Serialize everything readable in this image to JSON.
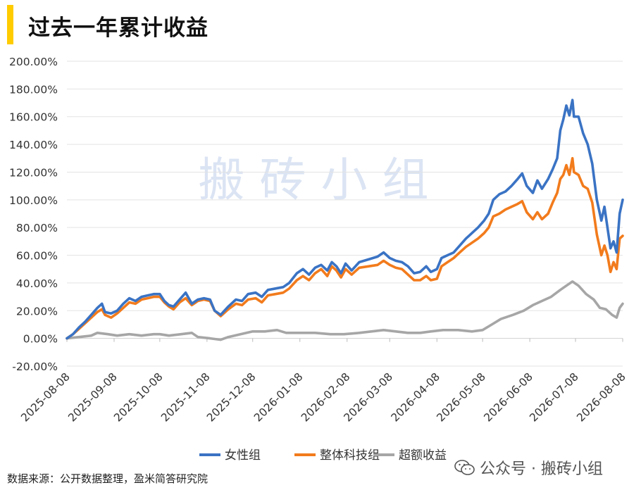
{
  "title": "过去一年累计收益",
  "source": "数据来源：公开数据整理，盈米简答研究院",
  "watermark": "搬 砖 小 组",
  "corner_watermark": "公众号 · 搬砖小组",
  "chart_data": {
    "type": "line",
    "title": "过去一年累计收益",
    "xlabel": "",
    "ylabel": "",
    "ylim": [
      -20,
      200
    ],
    "ytick_step": 20,
    "y_format": "percent_2dp",
    "grid": true,
    "legend_position": "bottom-right",
    "x_ticks": [
      "2025-08-08",
      "2025-09-08",
      "2025-10-08",
      "2025-11-08",
      "2025-12-08",
      "2026-01-08",
      "2026-02-08",
      "2026-03-08",
      "2026-04-08",
      "2026-05-08",
      "2026-06-08",
      "2026-07-08",
      "2026-08-08"
    ],
    "x_range": [
      "2025-08-08",
      "2026-08-08"
    ],
    "series": [
      {
        "name": "女性组",
        "color": "#3a73c4",
        "points": [
          [
            "2025-08-08",
            0
          ],
          [
            "2025-08-12",
            3
          ],
          [
            "2025-08-16",
            8
          ],
          [
            "2025-08-20",
            12
          ],
          [
            "2025-08-24",
            17
          ],
          [
            "2025-08-28",
            22
          ],
          [
            "2025-08-31",
            25
          ],
          [
            "2025-09-02",
            19
          ],
          [
            "2025-09-06",
            18
          ],
          [
            "2025-09-10",
            20
          ],
          [
            "2025-09-14",
            25
          ],
          [
            "2025-09-18",
            29
          ],
          [
            "2025-09-22",
            27
          ],
          [
            "2025-09-26",
            30
          ],
          [
            "2025-09-30",
            31
          ],
          [
            "2025-10-04",
            32
          ],
          [
            "2025-10-08",
            32
          ],
          [
            "2025-10-11",
            27
          ],
          [
            "2025-10-14",
            24
          ],
          [
            "2025-10-17",
            23
          ],
          [
            "2025-10-21",
            28
          ],
          [
            "2025-10-25",
            33
          ],
          [
            "2025-10-29",
            25
          ],
          [
            "2025-11-02",
            28
          ],
          [
            "2025-11-06",
            29
          ],
          [
            "2025-11-10",
            28
          ],
          [
            "2025-11-13",
            20
          ],
          [
            "2025-11-17",
            17
          ],
          [
            "2025-11-22",
            23
          ],
          [
            "2025-11-27",
            28
          ],
          [
            "2025-12-01",
            27
          ],
          [
            "2025-12-05",
            32
          ],
          [
            "2025-12-10",
            33
          ],
          [
            "2025-12-14",
            30
          ],
          [
            "2025-12-18",
            35
          ],
          [
            "2025-12-23",
            36
          ],
          [
            "2025-12-28",
            37
          ],
          [
            "2026-01-01",
            40
          ],
          [
            "2026-01-06",
            47
          ],
          [
            "2026-01-10",
            50
          ],
          [
            "2026-01-14",
            46
          ],
          [
            "2026-01-18",
            51
          ],
          [
            "2026-01-22",
            53
          ],
          [
            "2026-01-26",
            49
          ],
          [
            "2026-01-29",
            55
          ],
          [
            "2026-02-01",
            52
          ],
          [
            "2026-02-04",
            47
          ],
          [
            "2026-02-07",
            54
          ],
          [
            "2026-02-11",
            49
          ],
          [
            "2026-02-16",
            55
          ],
          [
            "2026-02-22",
            57
          ],
          [
            "2026-02-28",
            59
          ],
          [
            "2026-03-04",
            62
          ],
          [
            "2026-03-08",
            58
          ],
          [
            "2026-03-12",
            56
          ],
          [
            "2026-03-16",
            55
          ],
          [
            "2026-03-20",
            52
          ],
          [
            "2026-03-24",
            47
          ],
          [
            "2026-03-28",
            48
          ],
          [
            "2026-04-01",
            52
          ],
          [
            "2026-04-04",
            48
          ],
          [
            "2026-04-08",
            50
          ],
          [
            "2026-04-11",
            58
          ],
          [
            "2026-04-15",
            60
          ],
          [
            "2026-04-19",
            62
          ],
          [
            "2026-04-23",
            67
          ],
          [
            "2026-04-27",
            72
          ],
          [
            "2026-05-01",
            76
          ],
          [
            "2026-05-05",
            80
          ],
          [
            "2026-05-09",
            85
          ],
          [
            "2026-05-12",
            90
          ],
          [
            "2026-05-15",
            100
          ],
          [
            "2026-05-19",
            104
          ],
          [
            "2026-05-23",
            106
          ],
          [
            "2026-05-27",
            110
          ],
          [
            "2026-05-31",
            115
          ],
          [
            "2026-06-03",
            119
          ],
          [
            "2026-06-06",
            110
          ],
          [
            "2026-06-10",
            105
          ],
          [
            "2026-06-13",
            114
          ],
          [
            "2026-06-16",
            108
          ],
          [
            "2026-06-20",
            115
          ],
          [
            "2026-06-23",
            122
          ],
          [
            "2026-06-26",
            130
          ],
          [
            "2026-06-28",
            150
          ],
          [
            "2026-06-30",
            158
          ],
          [
            "2026-07-02",
            168
          ],
          [
            "2026-07-04",
            161
          ],
          [
            "2026-07-06",
            172
          ],
          [
            "2026-07-07",
            160
          ],
          [
            "2026-07-10",
            160
          ],
          [
            "2026-07-13",
            148
          ],
          [
            "2026-07-16",
            140
          ],
          [
            "2026-07-19",
            126
          ],
          [
            "2026-07-22",
            100
          ],
          [
            "2026-07-25",
            85
          ],
          [
            "2026-07-27",
            95
          ],
          [
            "2026-07-29",
            80
          ],
          [
            "2026-07-31",
            65
          ],
          [
            "2026-08-02",
            70
          ],
          [
            "2026-08-04",
            62
          ],
          [
            "2026-08-06",
            90
          ],
          [
            "2026-08-08",
            100
          ]
        ]
      },
      {
        "name": "整体科技组",
        "color": "#f27b1c",
        "points": [
          [
            "2025-08-08",
            0
          ],
          [
            "2025-08-12",
            3
          ],
          [
            "2025-08-16",
            7
          ],
          [
            "2025-08-20",
            11
          ],
          [
            "2025-08-24",
            15
          ],
          [
            "2025-08-28",
            19
          ],
          [
            "2025-08-31",
            21
          ],
          [
            "2025-09-02",
            17
          ],
          [
            "2025-09-06",
            15
          ],
          [
            "2025-09-10",
            18
          ],
          [
            "2025-09-14",
            22
          ],
          [
            "2025-09-18",
            26
          ],
          [
            "2025-09-22",
            25
          ],
          [
            "2025-09-26",
            28
          ],
          [
            "2025-09-30",
            29
          ],
          [
            "2025-10-04",
            30
          ],
          [
            "2025-10-08",
            30
          ],
          [
            "2025-10-11",
            26
          ],
          [
            "2025-10-14",
            23
          ],
          [
            "2025-10-17",
            21
          ],
          [
            "2025-10-21",
            26
          ],
          [
            "2025-10-25",
            29
          ],
          [
            "2025-10-29",
            24
          ],
          [
            "2025-11-02",
            27
          ],
          [
            "2025-11-06",
            28
          ],
          [
            "2025-11-10",
            27
          ],
          [
            "2025-11-13",
            20
          ],
          [
            "2025-11-17",
            16
          ],
          [
            "2025-11-22",
            21
          ],
          [
            "2025-11-27",
            25
          ],
          [
            "2025-12-01",
            24
          ],
          [
            "2025-12-05",
            28
          ],
          [
            "2025-12-10",
            29
          ],
          [
            "2025-12-14",
            26
          ],
          [
            "2025-12-18",
            31
          ],
          [
            "2025-12-23",
            32
          ],
          [
            "2025-12-28",
            33
          ],
          [
            "2026-01-01",
            36
          ],
          [
            "2026-01-06",
            42
          ],
          [
            "2026-01-10",
            45
          ],
          [
            "2026-01-14",
            42
          ],
          [
            "2026-01-18",
            47
          ],
          [
            "2026-01-22",
            50
          ],
          [
            "2026-01-26",
            45
          ],
          [
            "2026-01-29",
            52
          ],
          [
            "2026-02-01",
            49
          ],
          [
            "2026-02-04",
            44
          ],
          [
            "2026-02-07",
            50
          ],
          [
            "2026-02-11",
            46
          ],
          [
            "2026-02-16",
            51
          ],
          [
            "2026-02-22",
            52
          ],
          [
            "2026-02-28",
            53
          ],
          [
            "2026-03-04",
            56
          ],
          [
            "2026-03-08",
            53
          ],
          [
            "2026-03-12",
            51
          ],
          [
            "2026-03-16",
            50
          ],
          [
            "2026-03-20",
            46
          ],
          [
            "2026-03-24",
            42
          ],
          [
            "2026-03-28",
            42
          ],
          [
            "2026-04-01",
            45
          ],
          [
            "2026-04-04",
            42
          ],
          [
            "2026-04-08",
            43
          ],
          [
            "2026-04-11",
            52
          ],
          [
            "2026-04-15",
            55
          ],
          [
            "2026-04-19",
            58
          ],
          [
            "2026-04-23",
            62
          ],
          [
            "2026-04-27",
            66
          ],
          [
            "2026-05-01",
            69
          ],
          [
            "2026-05-05",
            72
          ],
          [
            "2026-05-09",
            76
          ],
          [
            "2026-05-12",
            80
          ],
          [
            "2026-05-15",
            88
          ],
          [
            "2026-05-19",
            90
          ],
          [
            "2026-05-23",
            93
          ],
          [
            "2026-05-27",
            95
          ],
          [
            "2026-05-31",
            97
          ],
          [
            "2026-06-03",
            99
          ],
          [
            "2026-06-06",
            91
          ],
          [
            "2026-06-10",
            86
          ],
          [
            "2026-06-13",
            91
          ],
          [
            "2026-06-16",
            86
          ],
          [
            "2026-06-20",
            90
          ],
          [
            "2026-06-23",
            98
          ],
          [
            "2026-06-26",
            105
          ],
          [
            "2026-06-28",
            115
          ],
          [
            "2026-06-30",
            118
          ],
          [
            "2026-07-02",
            125
          ],
          [
            "2026-07-04",
            118
          ],
          [
            "2026-07-06",
            130
          ],
          [
            "2026-07-07",
            120
          ],
          [
            "2026-07-10",
            118
          ],
          [
            "2026-07-13",
            110
          ],
          [
            "2026-07-16",
            108
          ],
          [
            "2026-07-19",
            98
          ],
          [
            "2026-07-22",
            75
          ],
          [
            "2026-07-25",
            60
          ],
          [
            "2026-07-27",
            67
          ],
          [
            "2026-07-29",
            60
          ],
          [
            "2026-07-31",
            48
          ],
          [
            "2026-08-02",
            55
          ],
          [
            "2026-08-04",
            50
          ],
          [
            "2026-08-06",
            72
          ],
          [
            "2026-08-08",
            74
          ]
        ]
      },
      {
        "name": "超额收益",
        "color": "#a6a6a6",
        "points": [
          [
            "2025-08-08",
            0
          ],
          [
            "2025-08-16",
            1
          ],
          [
            "2025-08-24",
            2
          ],
          [
            "2025-08-28",
            4
          ],
          [
            "2025-09-04",
            3
          ],
          [
            "2025-09-10",
            2
          ],
          [
            "2025-09-18",
            3
          ],
          [
            "2025-09-26",
            2
          ],
          [
            "2025-10-04",
            3
          ],
          [
            "2025-10-08",
            3
          ],
          [
            "2025-10-14",
            2
          ],
          [
            "2025-10-22",
            3
          ],
          [
            "2025-10-29",
            4
          ],
          [
            "2025-11-02",
            1
          ],
          [
            "2025-11-10",
            0
          ],
          [
            "2025-11-17",
            -1
          ],
          [
            "2025-11-22",
            1
          ],
          [
            "2025-11-30",
            3
          ],
          [
            "2025-12-08",
            5
          ],
          [
            "2025-12-16",
            5
          ],
          [
            "2025-12-24",
            6
          ],
          [
            "2025-12-30",
            4
          ],
          [
            "2026-01-08",
            4
          ],
          [
            "2026-01-18",
            4
          ],
          [
            "2026-01-28",
            3
          ],
          [
            "2026-02-06",
            3
          ],
          [
            "2026-02-16",
            4
          ],
          [
            "2026-02-24",
            5
          ],
          [
            "2026-03-04",
            6
          ],
          [
            "2026-03-12",
            5
          ],
          [
            "2026-03-20",
            4
          ],
          [
            "2026-03-28",
            4
          ],
          [
            "2026-04-04",
            5
          ],
          [
            "2026-04-12",
            6
          ],
          [
            "2026-04-22",
            6
          ],
          [
            "2026-05-01",
            5
          ],
          [
            "2026-05-08",
            6
          ],
          [
            "2026-05-14",
            10
          ],
          [
            "2026-05-20",
            14
          ],
          [
            "2026-05-28",
            17
          ],
          [
            "2026-06-04",
            20
          ],
          [
            "2026-06-10",
            24
          ],
          [
            "2026-06-16",
            27
          ],
          [
            "2026-06-22",
            30
          ],
          [
            "2026-06-28",
            35
          ],
          [
            "2026-07-02",
            38
          ],
          [
            "2026-07-06",
            41
          ],
          [
            "2026-07-10",
            38
          ],
          [
            "2026-07-15",
            32
          ],
          [
            "2026-07-20",
            28
          ],
          [
            "2026-07-24",
            22
          ],
          [
            "2026-07-28",
            21
          ],
          [
            "2026-08-01",
            17
          ],
          [
            "2026-08-04",
            15
          ],
          [
            "2026-08-06",
            22
          ],
          [
            "2026-08-08",
            25
          ]
        ]
      }
    ]
  }
}
